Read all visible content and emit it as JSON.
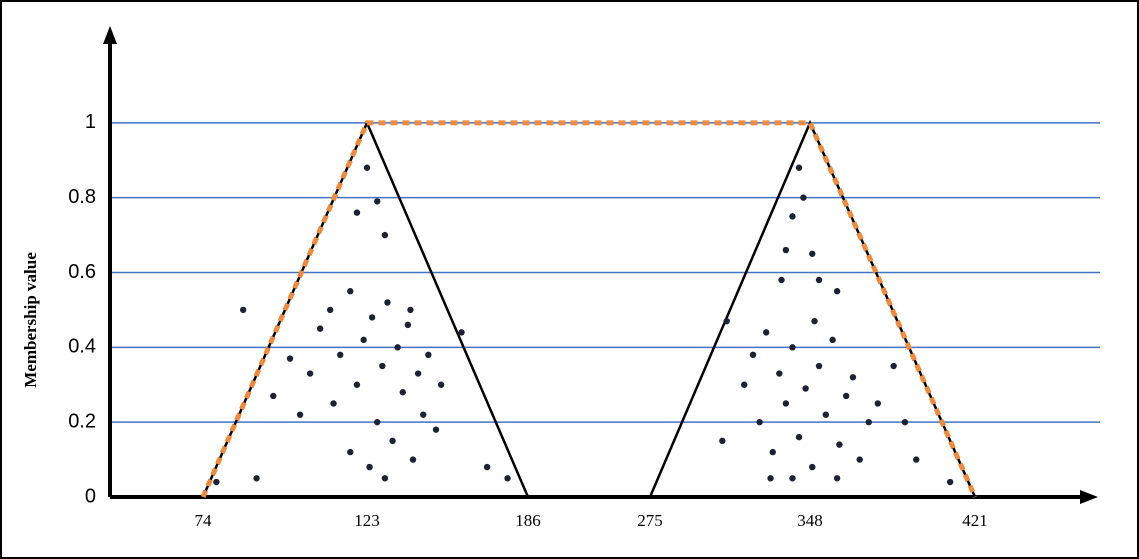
{
  "chart_data": {
    "type": "line",
    "y_label": "Membership value",
    "ylim": [
      0,
      1.2
    ],
    "yticks": [
      0,
      0.2,
      0.4,
      0.6,
      0.8,
      1
    ],
    "grid": true,
    "grid_color": "#4472c4",
    "xticks": [
      74,
      123,
      186,
      275,
      348,
      421
    ],
    "triangles": [
      {
        "color": "#000000",
        "x": [
          74,
          123,
          186
        ],
        "y": [
          0,
          1,
          0
        ]
      },
      {
        "color": "#000000",
        "x": [
          275,
          348,
          421
        ],
        "y": [
          0,
          1,
          0
        ]
      }
    ],
    "trapezoid": {
      "color": "#f08a3c",
      "x": [
        74,
        123,
        348,
        421
      ],
      "y": [
        0,
        1,
        1,
        0
      ]
    },
    "points": {
      "color": "#1c2233",
      "x": [
        109,
        112,
        115,
        118,
        120,
        122,
        125,
        127,
        129,
        131,
        133,
        135,
        137,
        139,
        141,
        143,
        145,
        147,
        150,
        118,
        124,
        113,
        130,
        140,
        152,
        78,
        90,
        95,
        100,
        86,
        120,
        123,
        127,
        130,
        106,
        160,
        170,
        178,
        103,
        318,
        322,
        325,
        328,
        331,
        334,
        337,
        340,
        343,
        346,
        349,
        352,
        355,
        358,
        361,
        364,
        367,
        370,
        374,
        378,
        340,
        350,
        330,
        360,
        343,
        340,
        345,
        337,
        349,
        352,
        335,
        360,
        310,
        308,
        385,
        395,
        410,
        390
      ],
      "y": [
        0.45,
        0.5,
        0.38,
        0.55,
        0.3,
        0.42,
        0.48,
        0.2,
        0.35,
        0.52,
        0.15,
        0.4,
        0.28,
        0.46,
        0.1,
        0.33,
        0.22,
        0.38,
        0.18,
        0.12,
        0.08,
        0.25,
        0.05,
        0.5,
        0.3,
        0.04,
        0.05,
        0.27,
        0.37,
        0.5,
        0.76,
        0.88,
        0.79,
        0.7,
        0.33,
        0.44,
        0.08,
        0.05,
        0.22,
        0.3,
        0.38,
        0.2,
        0.44,
        0.12,
        0.33,
        0.25,
        0.4,
        0.16,
        0.29,
        0.08,
        0.35,
        0.22,
        0.42,
        0.14,
        0.27,
        0.32,
        0.1,
        0.2,
        0.25,
        0.05,
        0.47,
        0.05,
        0.05,
        0.88,
        0.75,
        0.8,
        0.66,
        0.65,
        0.58,
        0.58,
        0.55,
        0.47,
        0.15,
        0.35,
        0.1,
        0.04,
        0.2
      ]
    }
  }
}
